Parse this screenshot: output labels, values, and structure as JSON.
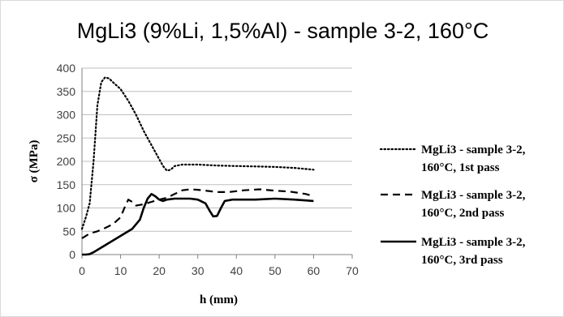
{
  "chart_data": {
    "type": "line",
    "title": "MgLi3 (9%Li, 1,5%Al) - sample 3-2, 160°C",
    "xlabel": "h (mm)",
    "ylabel": "σ (MPa)",
    "xlim": [
      0,
      70
    ],
    "ylim": [
      0,
      400
    ],
    "xticks": [
      "0",
      "10",
      "20",
      "30",
      "40",
      "50",
      "60",
      "70"
    ],
    "yticks": [
      "0",
      "50",
      "100",
      "150",
      "200",
      "250",
      "300",
      "350",
      "400"
    ],
    "grid": "horizontal",
    "legend_position": "right",
    "series": [
      {
        "legend_lines": [
          "MgLi3 - sample 3-2,",
          "160°C, 1st pass"
        ],
        "style": "dotted",
        "color": "#000000",
        "x": [
          0,
          1,
          2,
          3,
          4,
          5,
          6,
          7,
          8,
          10,
          12,
          14,
          16,
          18,
          20,
          21,
          22,
          23,
          24,
          26,
          30,
          35,
          40,
          45,
          50,
          55,
          60
        ],
        "y": [
          55,
          80,
          110,
          200,
          320,
          370,
          380,
          378,
          370,
          355,
          330,
          300,
          265,
          235,
          205,
          190,
          180,
          182,
          190,
          193,
          193,
          191,
          190,
          189,
          188,
          186,
          182
        ]
      },
      {
        "legend_lines": [
          "MgLi3 - sample 3-2,",
          "160°C, 2nd pass"
        ],
        "style": "dashed",
        "color": "#000000",
        "x": [
          0,
          2,
          4,
          6,
          8,
          10,
          11,
          12,
          13,
          14,
          16,
          18,
          20,
          22,
          24,
          26,
          28,
          30,
          32,
          35,
          38,
          42,
          46,
          50,
          54,
          58,
          60
        ],
        "y": [
          35,
          45,
          50,
          57,
          65,
          80,
          100,
          118,
          113,
          105,
          108,
          113,
          118,
          122,
          130,
          138,
          140,
          139,
          137,
          134,
          134,
          138,
          140,
          137,
          135,
          130,
          125
        ]
      },
      {
        "legend_lines": [
          "MgLi3 - sample 3-2,",
          "160°C, 3rd pass"
        ],
        "style": "solid",
        "color": "#000000",
        "x": [
          0,
          1,
          2,
          3,
          5,
          7,
          9,
          11,
          13,
          15,
          16,
          17,
          18,
          19,
          20,
          21,
          22,
          24,
          26,
          28,
          30,
          32,
          33,
          34,
          35,
          36,
          37,
          39,
          42,
          45,
          50,
          55,
          60
        ],
        "y": [
          0,
          0,
          1,
          5,
          15,
          25,
          35,
          45,
          55,
          75,
          100,
          120,
          130,
          125,
          118,
          115,
          118,
          120,
          120,
          120,
          118,
          110,
          95,
          82,
          83,
          100,
          115,
          118,
          118,
          118,
          120,
          118,
          115
        ]
      }
    ]
  }
}
